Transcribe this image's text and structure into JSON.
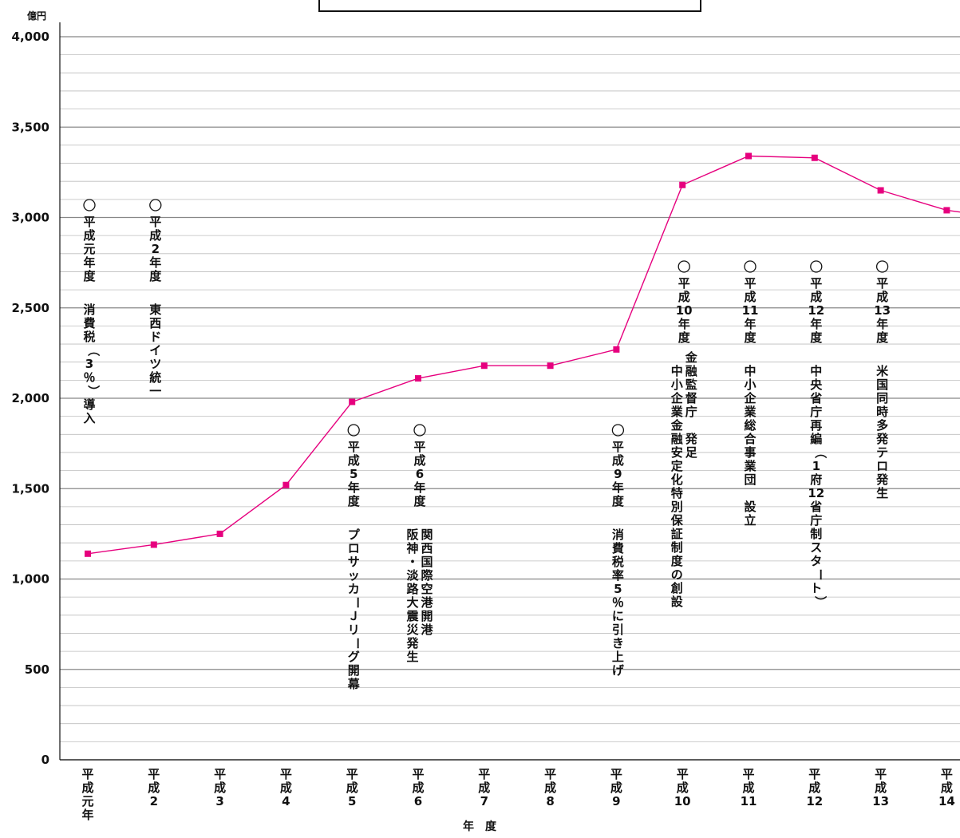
{
  "chart_data": {
    "type": "line",
    "title": "",
    "ylabel": "億円",
    "xlabel": "年　度",
    "ylim": [
      0,
      4000
    ],
    "yticks": [
      "0",
      "500",
      "1,000",
      "1,500",
      "2,000",
      "2,500",
      "3,000",
      "3,500",
      "4,000"
    ],
    "grid": true,
    "series_color": "#e6007e",
    "categories": [
      "平成元年",
      "平成2",
      "平成3",
      "平成4",
      "平成5",
      "平成6",
      "平成7",
      "平成8",
      "平成9",
      "平成10",
      "平成11",
      "平成12",
      "平成13",
      "平成14"
    ],
    "values": [
      1140,
      1190,
      1250,
      1520,
      1980,
      2110,
      2180,
      2180,
      2270,
      3180,
      3340,
      3330,
      3150,
      3040
    ],
    "annotations": [
      {
        "category": "平成元年",
        "header": "○平成元年度",
        "lines": [
          "消費税（3％）導入"
        ]
      },
      {
        "category": "平成2",
        "header": "○平成2年度",
        "lines": [
          "東西ドイツ統一"
        ]
      },
      {
        "category": "平成5",
        "header": "○平成5年度",
        "lines": [
          "プロサッカーＪリーグ開幕"
        ]
      },
      {
        "category": "平成6",
        "header": "○平成6年度",
        "lines": [
          "関西国際空港開港",
          "阪神・淡路大震災発生"
        ]
      },
      {
        "category": "平成9",
        "header": "○平成9年度",
        "lines": [
          "消費税率5％に引き上げ"
        ]
      },
      {
        "category": "平成10",
        "header": "○平成10年度",
        "lines": [
          "金融監督庁　発足",
          "中小企業金融安定化特別保証制度の創設"
        ]
      },
      {
        "category": "平成11",
        "header": "○平成11年度",
        "lines": [
          "中小企業総合事業団　設立"
        ]
      },
      {
        "category": "平成12",
        "header": "○平成12年度",
        "lines": [
          "中央省庁再編（1府12省庁制スタート）"
        ]
      },
      {
        "category": "平成13",
        "header": "○平成13年度",
        "lines": [
          "米国同時多発テロ発生"
        ]
      }
    ]
  }
}
